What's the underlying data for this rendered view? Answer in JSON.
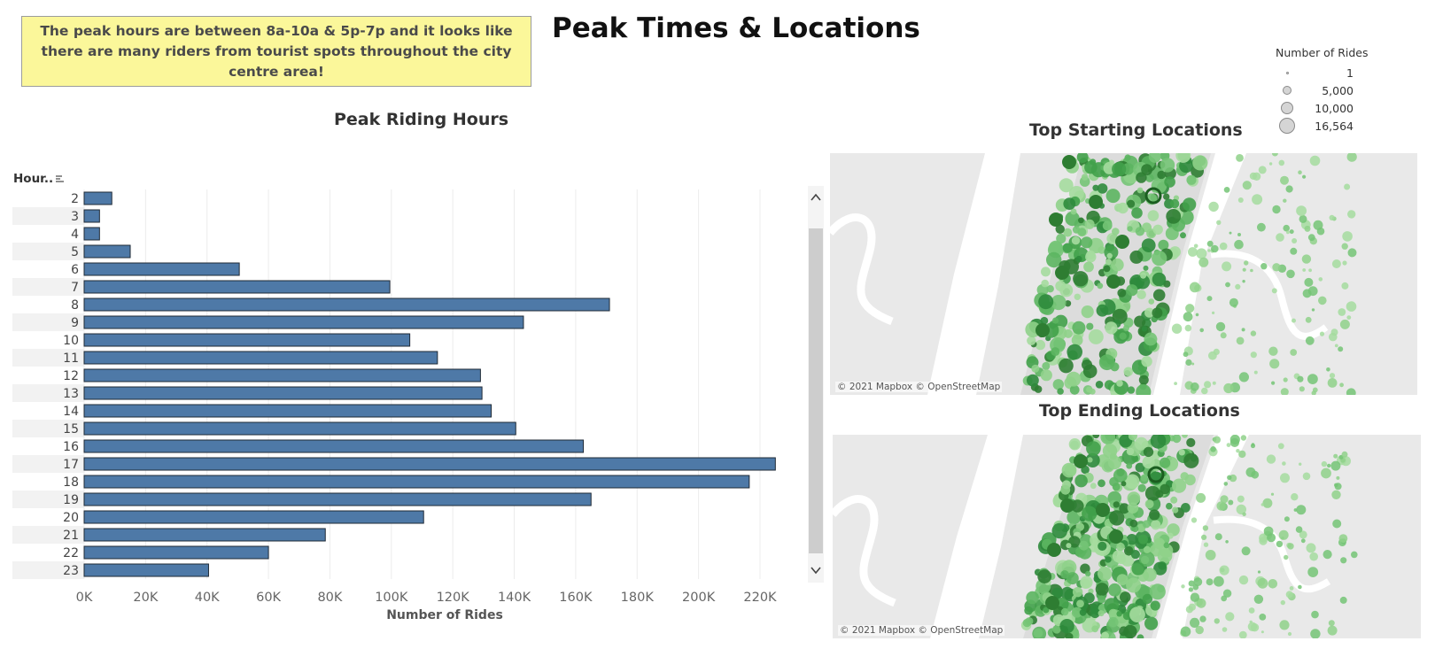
{
  "callout_text": "The peak hours are between 8a-10a & 5p-7p and it  looks like there are many riders from tourist spots throughout the city centre area!",
  "title": "Peak Times & Locations",
  "bar_section_title": "Peak Riding Hours",
  "start_section_title": "Top Starting Locations",
  "end_section_title": "Top Ending Locations",
  "legend": {
    "title": "Number of Rides",
    "items": [
      {
        "label": "1",
        "value": 1
      },
      {
        "label": "5,000",
        "value": 5000
      },
      {
        "label": "10,000",
        "value": 10000
      },
      {
        "label": "16,564",
        "value": 16564
      }
    ]
  },
  "map_attribution": "© 2021 Mapbox © OpenStreetMap",
  "colors": {
    "bar_fill": "#4e79a7",
    "bar_stroke": "#1f2a36",
    "band": "#f2f2f2",
    "map_land": "#e9e9e9",
    "map_water": "#ffffff",
    "dot_light": "#8fd18a",
    "dot_dark": "#2e7d32"
  },
  "chart_data": {
    "type": "bar",
    "orientation": "horizontal",
    "ylabel": "Hour..",
    "xlabel": "Number of Rides",
    "categories": [
      "2",
      "3",
      "4",
      "5",
      "6",
      "7",
      "8",
      "9",
      "10",
      "11",
      "12",
      "13",
      "14",
      "15",
      "16",
      "17",
      "18",
      "19",
      "20",
      "21",
      "22",
      "23"
    ],
    "values": [
      9000,
      5000,
      5000,
      15000,
      50500,
      99500,
      171000,
      143000,
      106000,
      115000,
      129000,
      129500,
      132500,
      140500,
      162500,
      225000,
      216500,
      165000,
      110500,
      78500,
      60000,
      40500
    ],
    "xlim": [
      0,
      235000
    ],
    "xticks": [
      0,
      20000,
      40000,
      60000,
      80000,
      100000,
      120000,
      140000,
      160000,
      180000,
      200000,
      220000
    ],
    "xtick_labels": [
      "0K",
      "20K",
      "40K",
      "60K",
      "80K",
      "100K",
      "120K",
      "140K",
      "160K",
      "180K",
      "200K",
      "220K"
    ],
    "grid": true
  }
}
